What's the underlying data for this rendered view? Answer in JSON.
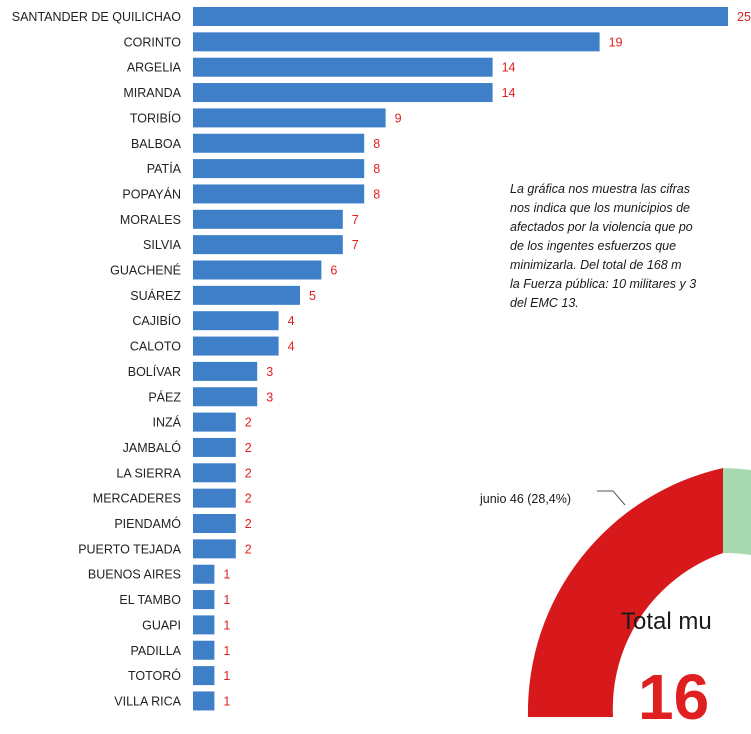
{
  "chart_data": [
    {
      "type": "bar",
      "orientation": "horizontal",
      "categories": [
        "SANTANDER DE QUILICHAO",
        "CORINTO",
        "ARGELIA",
        "MIRANDA",
        "TORIBÍO",
        "BALBOA",
        "PATÍA",
        "POPAYÁN",
        "MORALES",
        "SILVIA",
        "GUACHENÉ",
        "SUÁREZ",
        "CAJIBÍO",
        "CALOTO",
        "BOLÍVAR",
        "PÁEZ",
        "INZÁ",
        "JAMBALÓ",
        "LA SIERRA",
        "MERCADERES",
        "PIENDAMÓ",
        "PUERTO TEJADA",
        "BUENOS AIRES",
        "EL TAMBO",
        "GUAPI",
        "PADILLA",
        "TOTORÓ",
        "VILLA RICA"
      ],
      "values": [
        25,
        19,
        14,
        14,
        9,
        8,
        8,
        8,
        7,
        7,
        6,
        5,
        4,
        4,
        3,
        3,
        2,
        2,
        2,
        2,
        2,
        2,
        1,
        1,
        1,
        1,
        1,
        1
      ],
      "bar_color": "#3f7fc8",
      "value_label_color": "#e02020",
      "grid": false
    },
    {
      "type": "pie",
      "style": "donut",
      "slices": [
        {
          "label": "junio",
          "value": 46,
          "percent": "28,4%",
          "display": "junio 46 (28,4%)",
          "color": "#d7191c"
        },
        {
          "label": "",
          "value": null,
          "color": "#a8d8b0"
        }
      ],
      "center_title": "Total mu",
      "center_value": "16"
    }
  ],
  "note": {
    "lines": [
      "La gráfica nos muestra las cifras",
      "nos indica que los municipios de",
      "afectados por la violencia que po",
      "de los ingentes esfuerzos que",
      "minimizarla.    Del total de 168 m",
      "la Fuerza pública: 10 militares y 3",
      "del EMC 13."
    ]
  }
}
